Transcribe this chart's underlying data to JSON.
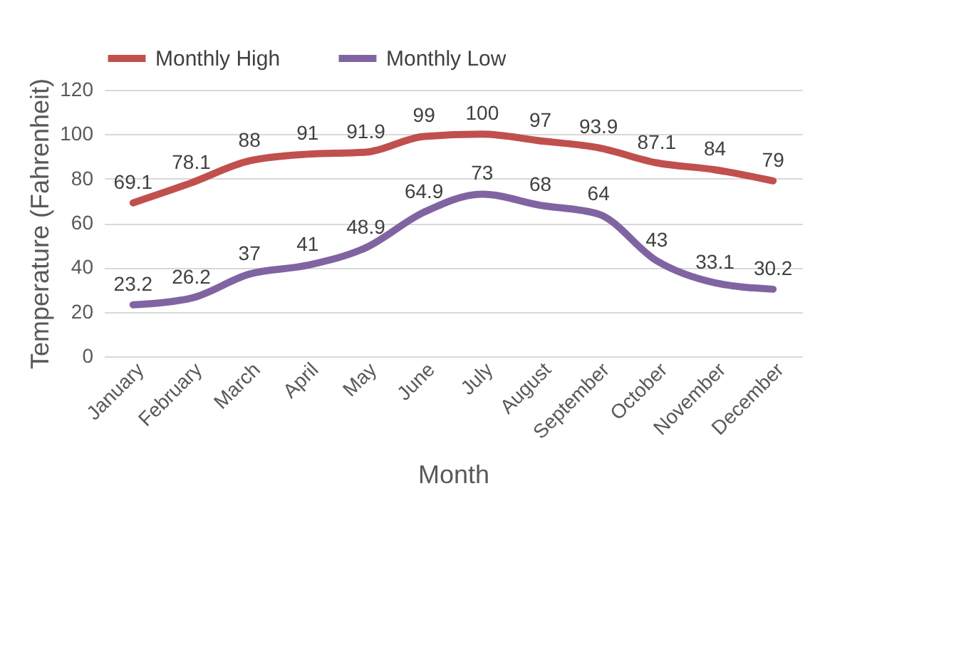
{
  "chart_data": {
    "type": "line",
    "xlabel": "Month",
    "ylabel": "Temperature (Fahrenheit)",
    "categories": [
      "January",
      "February",
      "March",
      "April",
      "May",
      "June",
      "July",
      "August",
      "September",
      "October",
      "November",
      "December"
    ],
    "series": [
      {
        "name": "Monthly High",
        "color": "#c0504d",
        "values": [
          69.1,
          78.1,
          88,
          91,
          91.9,
          99,
          100,
          97,
          93.9,
          87.1,
          84,
          79
        ]
      },
      {
        "name": "Monthly Low",
        "color": "#8064a2",
        "values": [
          23.2,
          26.2,
          37,
          41,
          48.9,
          64.9,
          73,
          68,
          64,
          43,
          33.1,
          30.2
        ]
      }
    ],
    "ylim": [
      0,
      120
    ],
    "yticks": [
      0,
      20,
      40,
      60,
      80,
      100,
      120
    ],
    "grid": "y",
    "legend": "top",
    "data_labels": true,
    "marker": "none",
    "line_style": "solid"
  }
}
